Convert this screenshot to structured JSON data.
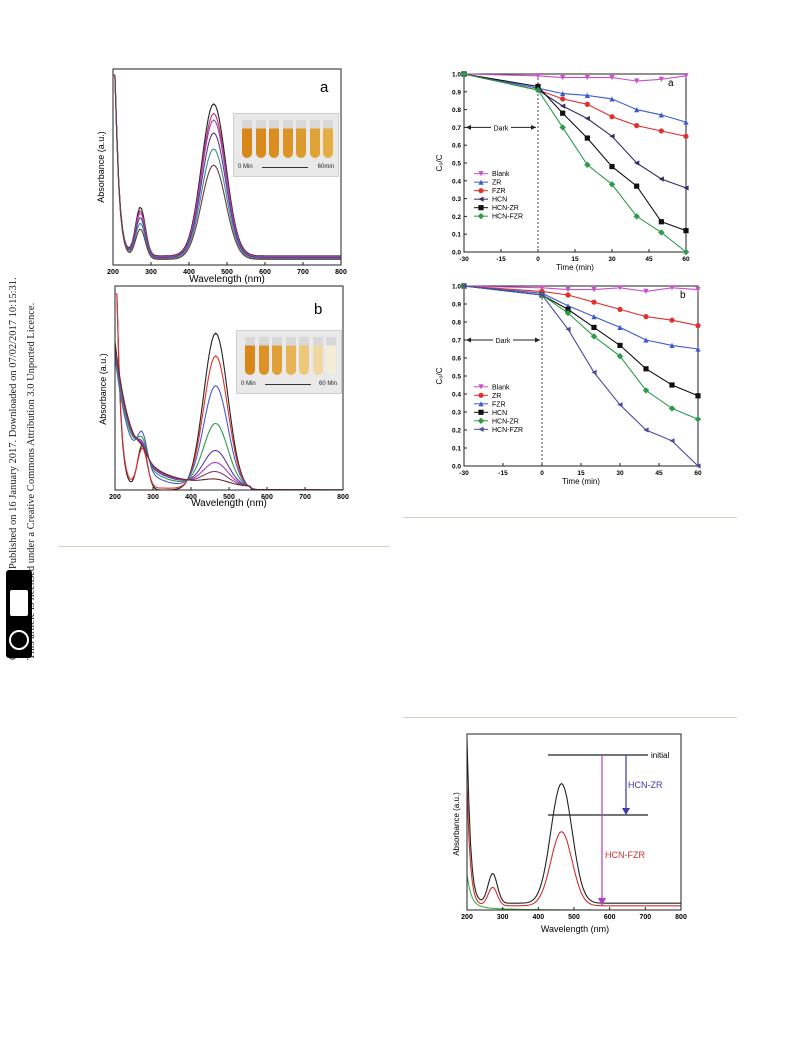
{
  "sidebar": {
    "line1": "Open Access Article. Published on 16 January 2017. Downloaded on 07/02/2017 10:15:31.",
    "line2": "This article is licensed under a Creative Commons Attribution 3.0 Unported Licence.",
    "license_badge": "cc-by-icon",
    "license_text": "BY"
  },
  "colors": {
    "blank": "#c850c8",
    "zr": "#3c5ad2",
    "fzr": "#e03030",
    "hcn": "#3a2a6a",
    "hcnzr": "#111111",
    "hcnfzr": "#2e9a4a",
    "rule": "#d8d2c4"
  },
  "panel_a": {
    "label": "a",
    "xlabel": "Wavelength (nm)",
    "ylabel": "Absorbance (a.u.)",
    "xticks": [
      "200",
      "300",
      "400",
      "500",
      "600",
      "700",
      "800"
    ],
    "inset_start": "0 Min",
    "inset_end": "60min"
  },
  "panel_b": {
    "label": "b",
    "xlabel": "Wavelength (nm)",
    "ylabel": "Absorbance (a.u.)",
    "xticks": [
      "200",
      "300",
      "400",
      "500",
      "600",
      "700",
      "800"
    ],
    "inset_start": "0 Min",
    "inset_end": "60 Min"
  },
  "chart_data": [
    {
      "id": "kinetics-a",
      "type": "line",
      "label": "a",
      "xlabel": "Time (min)",
      "ylabel": "C₀/C",
      "annotation": "Dark",
      "xlim": [
        -30,
        60
      ],
      "ylim": [
        0,
        1.0
      ],
      "xticks": [
        "-30",
        "-15",
        "0",
        "15",
        "30",
        "45",
        "60"
      ],
      "yticks": [
        "0.0",
        "0.1",
        "0.2",
        "0.3",
        "0.4",
        "0.5",
        "0.6",
        "0.7",
        "0.8",
        "0.9",
        "1.0"
      ],
      "x": [
        -30,
        0,
        10,
        20,
        30,
        40,
        50,
        60
      ],
      "series": [
        {
          "name": "Blank",
          "color": "#c850c8",
          "marker": "triangle-down",
          "values": [
            1.0,
            0.99,
            0.98,
            0.98,
            0.98,
            0.96,
            0.97,
            0.99
          ]
        },
        {
          "name": "ZR",
          "color": "#3c5ad2",
          "marker": "triangle-up",
          "values": [
            1.0,
            0.92,
            0.89,
            0.88,
            0.86,
            0.8,
            0.77,
            0.73
          ]
        },
        {
          "name": "FZR",
          "color": "#e03030",
          "marker": "circle",
          "values": [
            1.0,
            0.91,
            0.86,
            0.83,
            0.76,
            0.71,
            0.68,
            0.65
          ]
        },
        {
          "name": "HCN",
          "color": "#3a2a6a",
          "marker": "triangle-left",
          "values": [
            1.0,
            0.91,
            0.82,
            0.75,
            0.65,
            0.5,
            0.41,
            0.36
          ]
        },
        {
          "name": "HCN-ZR",
          "color": "#111111",
          "marker": "square",
          "values": [
            1.0,
            0.93,
            0.78,
            0.64,
            0.48,
            0.37,
            0.17,
            0.12
          ]
        },
        {
          "name": "HCN-FZR",
          "color": "#2e9a4a",
          "marker": "diamond",
          "values": [
            1.0,
            0.91,
            0.7,
            0.49,
            0.38,
            0.2,
            0.11,
            0.0
          ]
        }
      ],
      "legend": "left"
    },
    {
      "id": "kinetics-b",
      "type": "line",
      "label": "b",
      "xlabel": "Time (min)",
      "ylabel": "C₀/C",
      "annotation": "Dark",
      "xlim": [
        -30,
        60
      ],
      "ylim": [
        0,
        1.0
      ],
      "xticks": [
        "-30",
        "-15",
        "0",
        "15",
        "30",
        "45",
        "60"
      ],
      "yticks": [
        "0.0",
        "0.1",
        "0.2",
        "0.3",
        "0.4",
        "0.5",
        "0.6",
        "0.7",
        "0.8",
        "0.9",
        "1.0"
      ],
      "x": [
        -30,
        0,
        10,
        20,
        30,
        40,
        50,
        60
      ],
      "series": [
        {
          "name": "Blank",
          "color": "#c850c8",
          "marker": "triangle-down",
          "values": [
            1.0,
            0.99,
            0.98,
            0.98,
            0.99,
            0.97,
            0.99,
            0.98
          ]
        },
        {
          "name": "ZR",
          "color": "#e03030",
          "marker": "circle",
          "values": [
            1.0,
            0.97,
            0.95,
            0.91,
            0.87,
            0.83,
            0.81,
            0.78
          ]
        },
        {
          "name": "FZR",
          "color": "#3c5ad2",
          "marker": "triangle-up",
          "values": [
            1.0,
            0.96,
            0.89,
            0.83,
            0.77,
            0.7,
            0.67,
            0.65
          ]
        },
        {
          "name": "HCN",
          "color": "#111111",
          "marker": "square",
          "values": [
            1.0,
            0.95,
            0.87,
            0.77,
            0.67,
            0.54,
            0.45,
            0.39
          ]
        },
        {
          "name": "HCN-ZR",
          "color": "#2e9a4a",
          "marker": "diamond",
          "values": [
            1.0,
            0.95,
            0.85,
            0.72,
            0.61,
            0.42,
            0.32,
            0.26
          ]
        },
        {
          "name": "HCN-FZR",
          "color": "#4a4aa0",
          "marker": "triangle-left",
          "values": [
            1.0,
            0.95,
            0.76,
            0.52,
            0.34,
            0.2,
            0.14,
            0.0
          ]
        }
      ],
      "legend": "left"
    }
  ],
  "panel_c": {
    "xlabel": "Wavelength (nm)",
    "ylabel": "Absorbance (a.u.)",
    "xticks": [
      "200",
      "300",
      "400",
      "500",
      "600",
      "700",
      "800"
    ],
    "label_initial": "initial",
    "label_hcnzr": "HCN-ZR",
    "label_hcnfzr": "HCN-FZR"
  }
}
